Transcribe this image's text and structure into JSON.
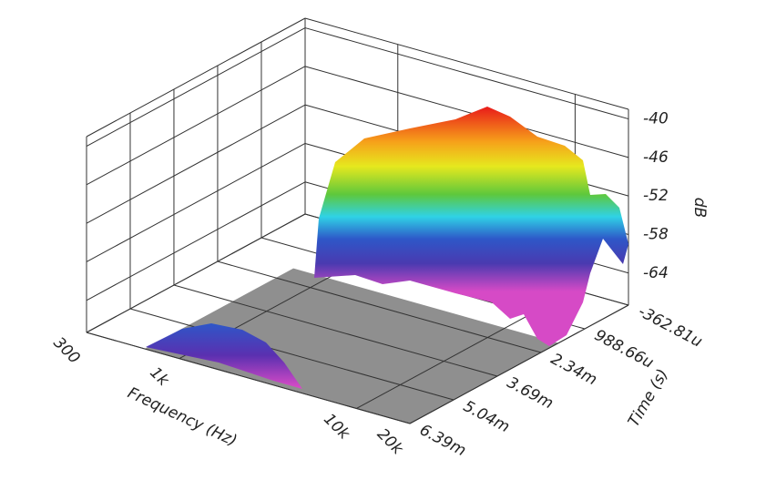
{
  "chart_data": {
    "type": "surface3d",
    "x_label": "Frequency (Hz)",
    "y_label": "Time (s)",
    "z_label": "dB",
    "xscale": "log",
    "xlim": [
      300,
      20000
    ],
    "xticks": [
      300,
      {
        "value": 1000,
        "label": "1k"
      },
      {
        "value": 10000,
        "label": "10k"
      },
      {
        "value": 20000,
        "label": "20k"
      }
    ],
    "ylim": [
      -0.00036281,
      0.00639
    ],
    "yticks": [
      {
        "value": -0.00036281,
        "label": "-362.81u"
      },
      {
        "value": 0.00098866,
        "label": "988.66u"
      },
      {
        "value": 0.00234,
        "label": "2.34m"
      },
      {
        "value": 0.00369,
        "label": "3.69m"
      },
      {
        "value": 0.00504,
        "label": "5.04m"
      },
      {
        "value": 0.00639,
        "label": "6.39m"
      }
    ],
    "zlim": [
      -69,
      -38.5
    ],
    "zticks": [
      -40,
      -46,
      -52,
      -58,
      -64
    ],
    "grid": true
  }
}
